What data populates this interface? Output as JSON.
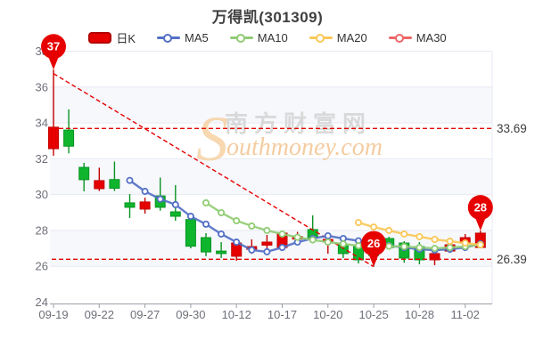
{
  "header": {
    "title": "万得凯(301309)"
  },
  "legend": {
    "items": [
      {
        "label": "日K",
        "type": "candle",
        "color": "#e60000"
      },
      {
        "label": "MA5",
        "type": "line",
        "color": "#5470c6"
      },
      {
        "label": "MA10",
        "type": "line",
        "color": "#91cc75"
      },
      {
        "label": "MA20",
        "type": "line",
        "color": "#fac858"
      },
      {
        "label": "MA30",
        "type": "line",
        "color": "#ee6666"
      }
    ]
  },
  "watermark": {
    "initial": "S",
    "cn": "南方财富网",
    "en": "outhmoney.com"
  },
  "colors": {
    "up": "#e60000",
    "up_border": "#c40000",
    "down": "#0eb52d",
    "down_border": "#0a9424",
    "trendline": "#e60000",
    "pin": "#e60000",
    "grid": "#e6eaf2",
    "band": "#f6f8fc",
    "axis": "#9aa0a6"
  },
  "chart_data": {
    "type": "candlestick",
    "title": "万得凯(301309)",
    "ylim": [
      24,
      38
    ],
    "yticks": [
      24,
      26,
      28,
      30,
      32,
      34,
      36,
      38
    ],
    "grid": "on",
    "legend_position": "top",
    "xtick_labels": [
      "09-19",
      "09-22",
      "09-27",
      "09-30",
      "10-12",
      "10-17",
      "10-20",
      "10-25",
      "10-28",
      "11-02"
    ],
    "xtick_indices": [
      0,
      3,
      6,
      9,
      12,
      15,
      18,
      21,
      24,
      27
    ],
    "dates": [
      "09-19",
      "09-20",
      "09-21",
      "09-22",
      "09-23",
      "09-26",
      "09-27",
      "09-28",
      "09-29",
      "09-30",
      "10-10",
      "10-11",
      "10-12",
      "10-13",
      "10-14",
      "10-17",
      "10-18",
      "10-19",
      "10-20",
      "10-21",
      "10-24",
      "10-25",
      "10-26",
      "10-27",
      "10-28",
      "10-31",
      "11-01",
      "11-02",
      "11-03"
    ],
    "candles": [
      {
        "open": 32.56,
        "close": 33.76,
        "high": 36.97,
        "low": 32.17
      },
      {
        "open": 33.6,
        "close": 32.7,
        "high": 34.75,
        "low": 32.3
      },
      {
        "open": 31.52,
        "close": 30.83,
        "high": 31.77,
        "low": 30.18
      },
      {
        "open": 30.33,
        "close": 30.78,
        "high": 31.5,
        "low": 30.2
      },
      {
        "open": 30.84,
        "close": 30.35,
        "high": 31.84,
        "low": 30.2
      },
      {
        "open": 29.54,
        "close": 29.29,
        "high": 30.03,
        "low": 28.69
      },
      {
        "open": 29.19,
        "close": 29.59,
        "high": 29.83,
        "low": 28.94
      },
      {
        "open": 29.93,
        "close": 29.29,
        "high": 30.95,
        "low": 29.1
      },
      {
        "open": 29.04,
        "close": 28.79,
        "high": 30.53,
        "low": 28.54
      },
      {
        "open": 28.61,
        "close": 27.12,
        "high": 28.75,
        "low": 27.0
      },
      {
        "open": 27.6,
        "close": 26.8,
        "high": 27.85,
        "low": 26.56
      },
      {
        "open": 26.85,
        "close": 26.71,
        "high": 27.35,
        "low": 26.46
      },
      {
        "open": 26.56,
        "close": 27.3,
        "high": 27.55,
        "low": 26.31
      },
      {
        "open": 26.95,
        "close": 27.1,
        "high": 27.5,
        "low": 26.7
      },
      {
        "open": 27.18,
        "close": 27.35,
        "high": 27.75,
        "low": 26.85
      },
      {
        "open": 27.05,
        "close": 27.85,
        "high": 27.95,
        "low": 26.95
      },
      {
        "open": 27.52,
        "close": 27.65,
        "high": 27.92,
        "low": 27.4
      },
      {
        "open": 28.05,
        "close": 27.6,
        "high": 28.84,
        "low": 27.35
      },
      {
        "open": 27.38,
        "close": 27.5,
        "high": 27.6,
        "low": 26.7
      },
      {
        "open": 27.2,
        "close": 26.71,
        "high": 27.45,
        "low": 26.46
      },
      {
        "open": 27.1,
        "close": 26.36,
        "high": 27.35,
        "low": 26.16
      },
      {
        "open": 26.9,
        "close": 26.6,
        "high": 27.0,
        "low": 25.98
      },
      {
        "open": 27.55,
        "close": 27.05,
        "high": 27.65,
        "low": 26.95
      },
      {
        "open": 27.3,
        "close": 26.46,
        "high": 27.4,
        "low": 26.2
      },
      {
        "open": 27.1,
        "close": 26.36,
        "high": 27.35,
        "low": 26.11
      },
      {
        "open": 26.36,
        "close": 26.71,
        "high": 26.95,
        "low": 26.06
      },
      {
        "open": 26.85,
        "close": 27.2,
        "high": 27.45,
        "low": 26.75
      },
      {
        "open": 27.3,
        "close": 27.6,
        "high": 27.8,
        "low": 27.2
      },
      {
        "open": 27.05,
        "close": 27.85,
        "high": 27.99,
        "low": 27.0
      }
    ],
    "series": [
      {
        "name": "MA5",
        "color": "#5470c6",
        "start": 5,
        "values": [
          30.79,
          30.18,
          29.75,
          29.44,
          28.79,
          28.35,
          27.8,
          27.35,
          26.91,
          26.81,
          27.05,
          27.35,
          27.55,
          27.7,
          27.55,
          27.42,
          27.28,
          27.15,
          27.05,
          26.95,
          26.9,
          26.95,
          27.05,
          27.25
        ]
      },
      {
        "name": "MA10",
        "color": "#91cc75",
        "start": 10,
        "values": [
          29.54,
          28.99,
          28.54,
          28.25,
          28.0,
          27.8,
          27.62,
          27.47,
          27.35,
          27.25,
          27.15,
          27.05,
          27.12,
          27.1,
          27.05,
          27.0,
          27.05,
          27.1,
          27.2
        ]
      },
      {
        "name": "MA20",
        "color": "#fac858",
        "start": 20,
        "values": [
          28.44,
          28.19,
          28.0,
          27.8,
          27.65,
          27.5,
          27.4,
          27.3,
          27.2
        ]
      },
      {
        "name": "MA30",
        "color": "#ee6666",
        "start": 29,
        "values": []
      }
    ],
    "trendlines": {
      "horizontal": [
        {
          "value": 33.69,
          "label": "33.69"
        },
        {
          "value": 26.39,
          "label": "26.39"
        }
      ],
      "diagonal": {
        "from_index": 0,
        "from_value": 36.75,
        "to_index": 21,
        "to_value": 25.98
      }
    },
    "annotations": [
      {
        "index": 0,
        "value": 36.97,
        "label": "37"
      },
      {
        "index": 21,
        "value": 25.98,
        "label": "26"
      },
      {
        "index": 28,
        "value": 27.99,
        "label": "28"
      }
    ]
  }
}
